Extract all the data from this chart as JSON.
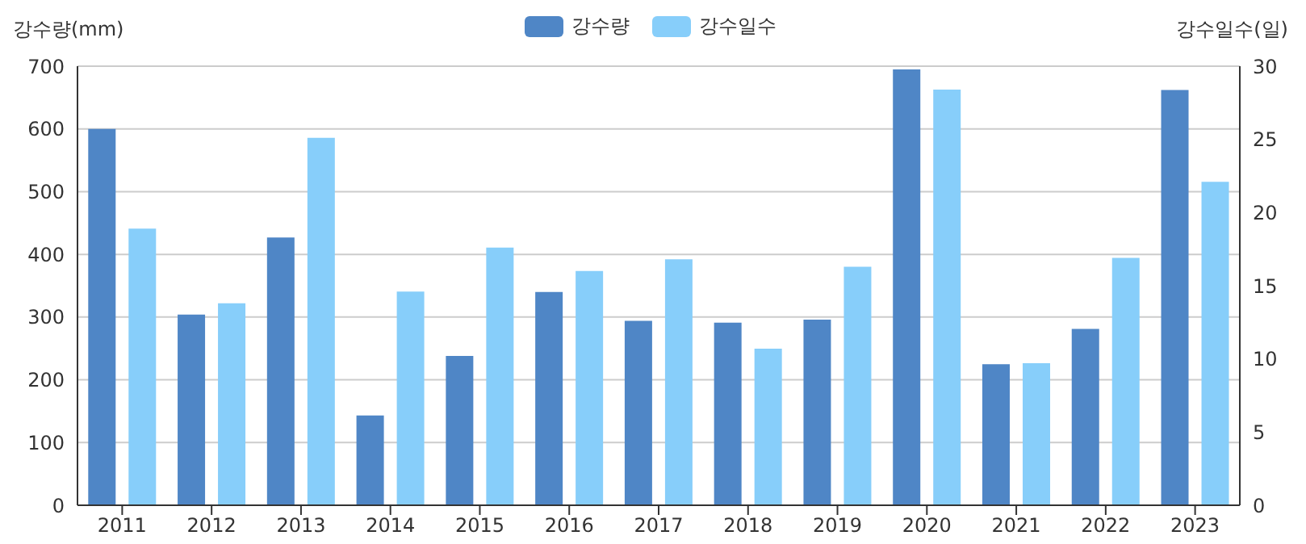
{
  "chart_data": {
    "type": "bar",
    "ylabel": "강수량(mm)",
    "y2label": "강수일수(일)",
    "categories": [
      "2011",
      "2012",
      "2013",
      "2014",
      "2015",
      "2016",
      "2017",
      "2018",
      "2019",
      "2020",
      "2021",
      "2022",
      "2023"
    ],
    "series": [
      {
        "name": "강수량",
        "color": "#4f86c6",
        "values": [
          600,
          304,
          427,
          143,
          238,
          340,
          294,
          291,
          296,
          695,
          225,
          281,
          662
        ]
      },
      {
        "name": "강수일수",
        "color": "#87cefa",
        "axis": "y2",
        "values": [
          18.9,
          13.8,
          25.1,
          14.6,
          17.6,
          16.0,
          16.8,
          10.7,
          16.3,
          28.4,
          9.7,
          16.9,
          22.1
        ]
      }
    ],
    "ylim": [
      0,
      700
    ],
    "yticks": [
      0,
      100,
      200,
      300,
      400,
      500,
      600,
      700
    ],
    "y2lim": [
      0,
      30
    ],
    "y2ticks": [
      0,
      5,
      10,
      15,
      20,
      25,
      30
    ],
    "grid": "y",
    "legend": "top"
  }
}
